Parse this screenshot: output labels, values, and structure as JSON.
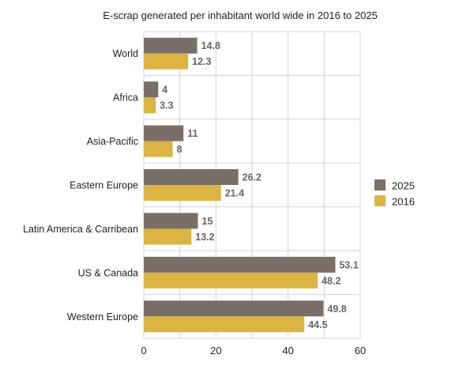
{
  "chart_data": {
    "type": "bar",
    "orientation": "horizontal",
    "title": "E-scrap generated per inhabitant world wide in 2016 to 2025",
    "categories": [
      "World",
      "Africa",
      "Asia-Pacific",
      "Eastern Europe",
      "Latin America & Carribean",
      "US & Canada",
      "Western Europe"
    ],
    "series": [
      {
        "name": "2025",
        "color": "#7a6f68",
        "values": [
          14.8,
          4,
          11,
          26.2,
          15,
          53.1,
          49.8
        ],
        "labels": [
          "14.8",
          "4",
          "11",
          "26.2",
          "15",
          "53.1",
          "49.8"
        ]
      },
      {
        "name": "2016",
        "color": "#dcb443",
        "values": [
          12.3,
          3.3,
          8,
          21.4,
          13.2,
          48.2,
          44.5
        ],
        "labels": [
          "12.3",
          "3.3",
          "8",
          "21.4",
          "13.2",
          "48.2",
          "44.5"
        ]
      }
    ],
    "xlim": [
      0,
      60
    ],
    "xticks": [
      "0",
      "20",
      "40",
      "60"
    ],
    "xlabel": "",
    "ylabel": "",
    "grid": true,
    "legend_position": "right"
  }
}
